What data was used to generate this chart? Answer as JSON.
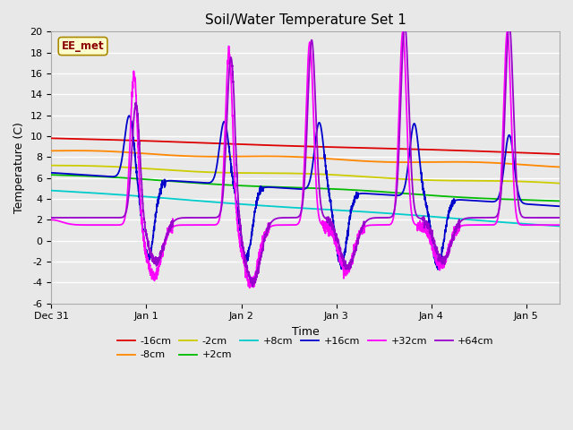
{
  "title": "Soil/Water Temperature Set 1",
  "xlabel": "Time",
  "ylabel": "Temperature (C)",
  "ylim": [
    -6,
    20
  ],
  "yticks": [
    -6,
    -4,
    -2,
    0,
    2,
    4,
    6,
    8,
    10,
    12,
    14,
    16,
    18,
    20
  ],
  "xtick_labels": [
    "Dec 31",
    "Jan 1",
    "Jan 2",
    "Jan 3",
    "Jan 4",
    "Jan 5"
  ],
  "xtick_positions": [
    0,
    1,
    2,
    3,
    4,
    5
  ],
  "xlim": [
    0,
    5.35
  ],
  "watermark": "EE_met",
  "bg_color": "#e8e8e8",
  "colors": {
    "m16": "#dd0000",
    "m8": "#ff8800",
    "m2": "#cccc00",
    "p2": "#00bb00",
    "p8": "#00cccc",
    "p16": "#0000cc",
    "p32": "#ff00ff",
    "p64": "#9900cc"
  },
  "legend_labels": [
    "-16cm",
    "-8cm",
    "-2cm",
    "+2cm",
    "+8cm",
    "+16cm",
    "+32cm",
    "+64cm"
  ]
}
